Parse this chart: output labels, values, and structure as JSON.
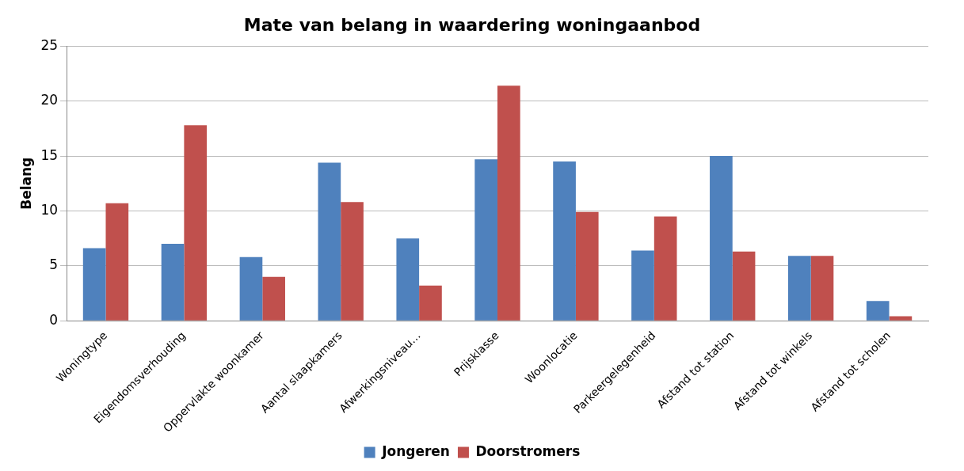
{
  "chart_data": {
    "type": "bar",
    "title": "Mate van belang in waardering woningaanbod",
    "ylabel": "Belang",
    "categories": [
      "Woningtype",
      "Eigendomsverhouding",
      "Oppervlakte woonkamer",
      "Aantal slaapkamers",
      "Afwerkingsniveau…",
      "Prijsklasse",
      "Woonlocatie",
      "Parkeergelegenheid",
      "Afstand tot station",
      "Afstand tot winkels",
      "Afstand tot scholen"
    ],
    "series": [
      {
        "name": "Jongeren",
        "color": "#4f81bd",
        "values": [
          6.6,
          7.0,
          5.8,
          14.4,
          7.5,
          14.7,
          14.5,
          6.4,
          15.0,
          5.9,
          1.8
        ]
      },
      {
        "name": "Doorstromers",
        "color": "#c0504d",
        "values": [
          10.7,
          17.8,
          4.0,
          10.8,
          3.2,
          21.4,
          9.9,
          9.5,
          6.3,
          5.9,
          0.4
        ]
      }
    ],
    "ylim": [
      0,
      25
    ],
    "yticks": [
      0,
      5,
      10,
      15,
      20,
      25
    ],
    "grid": "y",
    "legend": "bottom"
  }
}
